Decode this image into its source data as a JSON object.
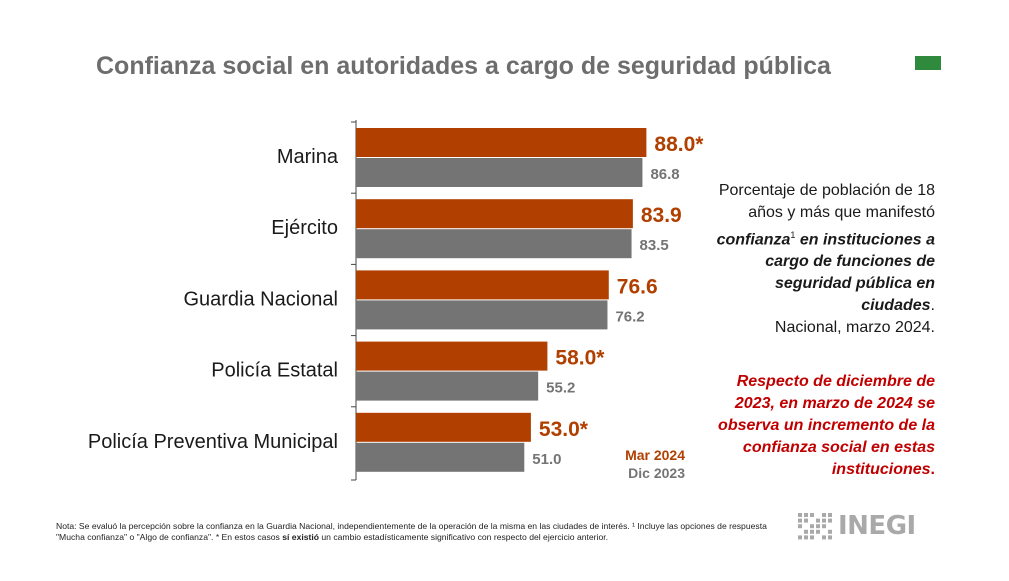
{
  "title": "Confianza social en autoridades a cargo de seguridad pública",
  "colors": {
    "mar": "#b13f00",
    "dic": "#747474",
    "highlight": "#c00000",
    "title": "#6d6d6d",
    "logo": "#a9a9a9",
    "brand_mark": "#2f8a3e"
  },
  "chart_data": {
    "type": "bar",
    "orientation": "horizontal",
    "categories": [
      "Marina",
      "Ejército",
      "Guardia Nacional",
      "Policía Estatal",
      "Policía Preventiva Municipal"
    ],
    "series": [
      {
        "name": "Mar 2024",
        "values": [
          88.0,
          83.9,
          76.6,
          58.0,
          53.0
        ],
        "labels": [
          "88.0*",
          "83.9",
          "76.6",
          "58.0*",
          "53.0*"
        ]
      },
      {
        "name": "Dic 2023",
        "values": [
          86.8,
          83.5,
          76.2,
          55.2,
          51.0
        ],
        "labels": [
          "86.8",
          "83.5",
          "76.2",
          "55.2",
          "51.0"
        ]
      }
    ],
    "xlim": [
      0,
      100
    ],
    "legend_position": "bottom-right",
    "grid": false
  },
  "description": {
    "line1": "Porcentaje de población de 18 años y más que manifestó ",
    "bold": "confianza",
    "sup": "1",
    "bold2": " en instituciones a cargo de funciones de seguridad pública en ciudades",
    "end": ".",
    "line_last": "Nacional, marzo 2024."
  },
  "highlight_text": "Respecto de diciembre de 2023, en marzo de 2024 se observa un incremento de la confianza social en estas instituciones",
  "highlight_end": ".",
  "note": {
    "part1": "Nota: Se evaluó la percepción sobre la confianza en la Guardia Nacional, independientemente de la operación de la misma en las ciudades de interés. ¹ Incluye las opciones de respuesta \"Mucha confianza\" o \"Algo de confianza\". * En estos casos ",
    "bold": "sí existió",
    "part2": " un cambio estadísticamente significativo con respecto del ejercicio anterior."
  },
  "logo": {
    "text": "INEGI",
    "icon": "inegi-grid-icon"
  }
}
